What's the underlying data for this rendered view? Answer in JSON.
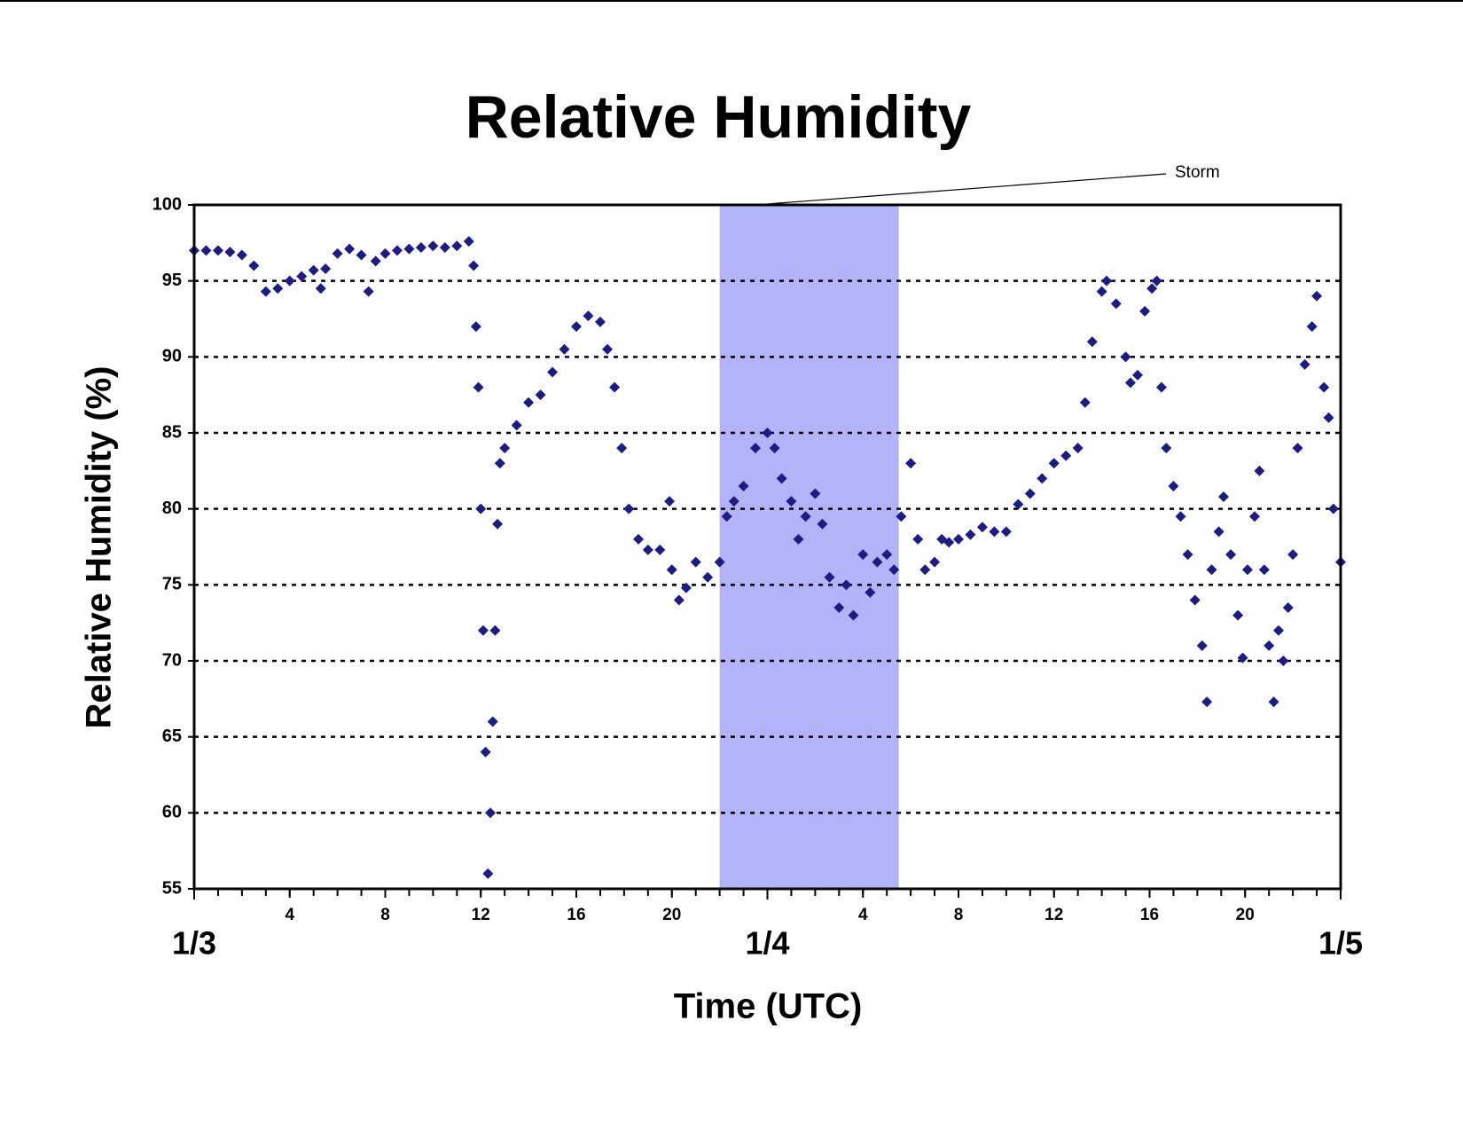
{
  "chart_data": {
    "type": "scatter",
    "title": "Relative Humidity",
    "x_label": "Time (UTC)",
    "y_label": "Relative Humidity (%)",
    "annotation": "Storm",
    "storm_span": [
      22,
      29.5
    ],
    "storm_color": "#b3b3fa",
    "marker": "diamond",
    "color": "#1c1c84",
    "xlim": [
      0,
      48
    ],
    "ylim": [
      55,
      100
    ],
    "yticks": [
      55,
      60,
      65,
      70,
      75,
      80,
      85,
      90,
      95,
      100
    ],
    "xticks": [
      4,
      8,
      12,
      16,
      20,
      {
        "value": 28,
        "label": "4"
      },
      {
        "value": 32,
        "label": "8"
      },
      {
        "value": 36,
        "label": "12"
      },
      {
        "value": 40,
        "label": "16"
      },
      {
        "value": 44,
        "label": "20"
      }
    ],
    "xticks_major": [
      {
        "value": 0,
        "label": "1/3"
      },
      {
        "value": 24,
        "label": "1/4"
      },
      {
        "value": 48,
        "label": "1/5"
      }
    ],
    "xticks_minor": [
      0,
      1,
      2,
      3,
      4,
      5,
      6,
      7,
      8,
      9,
      10,
      11,
      12,
      13,
      14,
      15,
      16,
      17,
      18,
      19,
      20,
      21,
      22,
      23,
      24,
      25,
      26,
      27,
      28,
      29,
      30,
      31,
      32,
      33,
      34,
      35,
      36,
      37,
      38,
      39,
      40,
      41,
      42,
      43,
      44,
      45,
      46,
      47,
      48
    ],
    "grid": true,
    "grid_style": "dotted",
    "x": [
      0,
      0.5,
      1,
      1.5,
      2,
      2.5,
      3,
      3.5,
      4,
      4.5,
      5,
      5.3,
      5.5,
      6,
      6.5,
      7,
      7.3,
      7.6,
      8,
      8.5,
      9,
      9.5,
      10,
      10.5,
      11,
      11.5,
      11.7,
      11.8,
      11.9,
      12,
      12.1,
      12.2,
      12.3,
      12.4,
      12.5,
      12.6,
      12.7,
      12.8,
      13,
      13.5,
      14,
      14.5,
      15,
      15.5,
      16,
      16.5,
      17,
      17.3,
      17.6,
      17.9,
      18.2,
      18.6,
      19,
      19.5,
      19.9,
      20,
      20.3,
      20.6,
      21,
      21.5,
      22,
      22.3,
      22.6,
      23,
      23.5,
      24,
      24.3,
      24.6,
      25,
      25.3,
      25.6,
      26,
      26.3,
      26.6,
      27,
      27.3,
      27.6,
      28,
      28.3,
      28.6,
      29,
      29.3,
      29.6,
      30,
      30.3,
      30.6,
      31,
      31.3,
      31.6,
      32,
      32.5,
      33,
      33.5,
      34,
      34.5,
      35,
      35.5,
      36,
      36.5,
      37,
      37.3,
      37.6,
      38,
      38.2,
      38.6,
      39,
      39.2,
      39.5,
      39.8,
      40.1,
      40.3,
      40.5,
      40.7,
      41,
      41.3,
      41.6,
      41.9,
      42.2,
      42.4,
      42.6,
      42.9,
      43.1,
      43.4,
      43.7,
      43.9,
      44.1,
      44.4,
      44.6,
      44.8,
      45,
      45.2,
      45.4,
      45.6,
      45.8,
      46,
      46.2,
      46.5,
      46.8,
      47,
      47.3,
      47.5,
      47.7,
      48
    ],
    "values": [
      97,
      97,
      97,
      96.9,
      96.7,
      96,
      94.3,
      94.5,
      95,
      95.3,
      95.7,
      94.5,
      95.8,
      96.8,
      97.1,
      96.7,
      94.3,
      96.3,
      96.8,
      97,
      97.1,
      97.2,
      97.3,
      97.2,
      97.3,
      97.6,
      96,
      92,
      88,
      80,
      72,
      64,
      56,
      60,
      66,
      72,
      79,
      83,
      84,
      85.5,
      87,
      87.5,
      89,
      90.5,
      92,
      92.7,
      92.3,
      90.5,
      88,
      84,
      80,
      78,
      77.3,
      77.3,
      80.5,
      76,
      74,
      74.8,
      76.5,
      75.5,
      76.5,
      79.5,
      80.5,
      81.5,
      84,
      85,
      84,
      82,
      80.5,
      78,
      79.5,
      81,
      79,
      75.5,
      73.5,
      75,
      73,
      77,
      74.5,
      76.5,
      77,
      76,
      79.5,
      83,
      78,
      76,
      76.5,
      78,
      77.8,
      78,
      78.3,
      78.8,
      78.5,
      78.5,
      80.3,
      81,
      82,
      83,
      83.5,
      84,
      87,
      91,
      94.3,
      95,
      93.5,
      90,
      88.3,
      88.8,
      93,
      94.5,
      95,
      88,
      84,
      81.5,
      79.5,
      77,
      74,
      71,
      67.3,
      76,
      78.5,
      80.8,
      77,
      73,
      70.2,
      76,
      79.5,
      82.5,
      76,
      71,
      67.3,
      72,
      70,
      73.5,
      77,
      84,
      89.5,
      92,
      94,
      88,
      86,
      80,
      76.5
    ]
  }
}
